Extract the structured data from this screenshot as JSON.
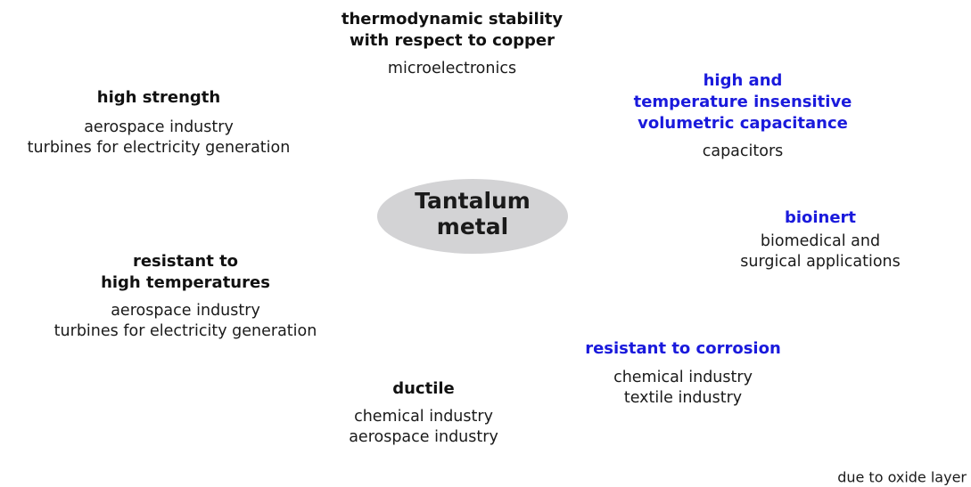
{
  "center": {
    "lines": [
      "Tantalum",
      "metal"
    ]
  },
  "properties": [
    {
      "title": [
        "thermodynamic stability",
        "with respect to copper"
      ],
      "color": "#111111",
      "applications": [
        "microelectronics"
      ]
    },
    {
      "title": [
        "high strength"
      ],
      "color": "#111111",
      "applications": [
        "aerospace industry",
        "turbines for electricity generation"
      ]
    },
    {
      "title": [
        "high and",
        "temperature insensitive",
        "volumetric capacitance"
      ],
      "color": "#1a1adc",
      "applications": [
        "capacitors"
      ]
    },
    {
      "title": [
        "bioinert"
      ],
      "color": "#1a1adc",
      "applications": [
        "biomedical and",
        "surgical applications"
      ]
    },
    {
      "title": [
        "resistant to",
        "high temperatures"
      ],
      "color": "#111111",
      "applications": [
        "aerospace industry",
        "turbines for electricity generation"
      ]
    },
    {
      "title": [
        "resistant to corrosion"
      ],
      "color": "#1a1adc",
      "applications": [
        "chemical industry",
        "textile industry"
      ]
    },
    {
      "title": [
        "ductile"
      ],
      "color": "#111111",
      "applications": [
        "chemical industry",
        "aerospace industry"
      ]
    }
  ],
  "footnote": {
    "text": "due to oxide layer",
    "color": "#1a1adc"
  }
}
